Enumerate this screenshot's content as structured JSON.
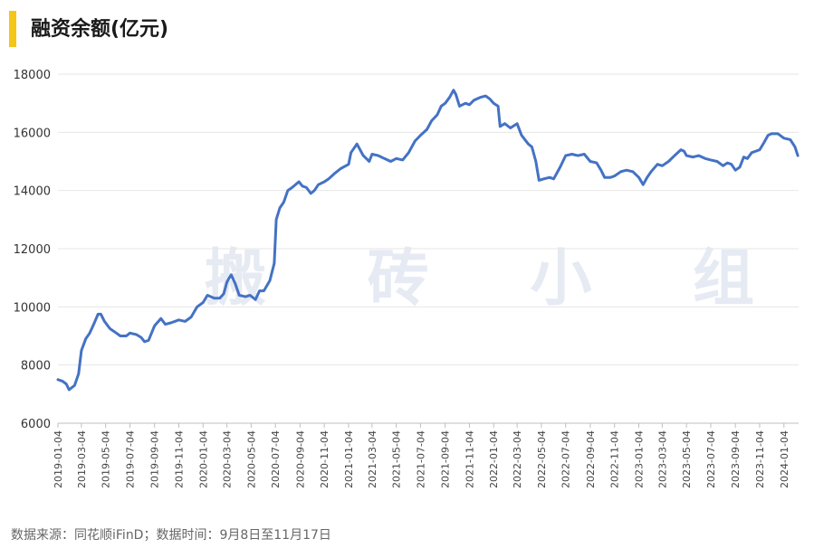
{
  "header": {
    "title": "融资余额(亿元)"
  },
  "watermark": "搬 砖 小 组",
  "footer": {
    "source": "数据来源：同花顺iFinD；数据时间：9月8日至11月17日"
  },
  "colors": {
    "line": "#4472c4",
    "accent": "#f5c518",
    "grid": "#e6e6e6"
  },
  "chart_data": {
    "type": "line",
    "title": "融资余额(亿元)",
    "xlabel": "",
    "ylabel": "",
    "ylim": [
      6000,
      18000
    ],
    "yticks": [
      6000,
      8000,
      10000,
      12000,
      14000,
      16000,
      18000
    ],
    "grid": true,
    "xticks": [
      "2019-01-04",
      "2019-03-04",
      "2019-05-04",
      "2019-07-04",
      "2019-09-04",
      "2019-11-04",
      "2020-01-04",
      "2020-03-04",
      "2020-05-04",
      "2020-07-04",
      "2020-09-04",
      "2020-11-04",
      "2021-01-04",
      "2021-03-04",
      "2021-05-04",
      "2021-07-04",
      "2021-09-04",
      "2021-11-04",
      "2022-01-04",
      "2022-03-04",
      "2022-05-04",
      "2022-07-04",
      "2022-09-04",
      "2022-11-04",
      "2023-01-04",
      "2023-03-04",
      "2023-05-04",
      "2023-07-04",
      "2023-09-04",
      "2023-11-04",
      "2024-01-04"
    ],
    "series": [
      {
        "values": [
          [
            "2019-01-04",
            7500
          ],
          [
            "2019-01-15",
            7450
          ],
          [
            "2019-01-25",
            7350
          ],
          [
            "2019-02-01",
            7150
          ],
          [
            "2019-02-15",
            7300
          ],
          [
            "2019-02-25",
            7700
          ],
          [
            "2019-03-04",
            8500
          ],
          [
            "2019-03-15",
            8900
          ],
          [
            "2019-03-25",
            9100
          ],
          [
            "2019-04-04",
            9400
          ],
          [
            "2019-04-15",
            9750
          ],
          [
            "2019-04-22",
            9750
          ],
          [
            "2019-05-01",
            9500
          ],
          [
            "2019-05-15",
            9250
          ],
          [
            "2019-05-31",
            9100
          ],
          [
            "2019-06-10",
            9000
          ],
          [
            "2019-06-25",
            9000
          ],
          [
            "2019-07-04",
            9100
          ],
          [
            "2019-07-20",
            9050
          ],
          [
            "2019-08-01",
            8950
          ],
          [
            "2019-08-10",
            8800
          ],
          [
            "2019-08-20",
            8850
          ],
          [
            "2019-09-04",
            9350
          ],
          [
            "2019-09-20",
            9600
          ],
          [
            "2019-10-01",
            9400
          ],
          [
            "2019-10-15",
            9450
          ],
          [
            "2019-11-04",
            9550
          ],
          [
            "2019-11-20",
            9500
          ],
          [
            "2019-12-05",
            9650
          ],
          [
            "2019-12-20",
            10000
          ],
          [
            "2020-01-04",
            10150
          ],
          [
            "2020-01-15",
            10400
          ],
          [
            "2020-02-01",
            10300
          ],
          [
            "2020-02-15",
            10300
          ],
          [
            "2020-02-25",
            10450
          ],
          [
            "2020-03-04",
            10850
          ],
          [
            "2020-03-10",
            11000
          ],
          [
            "2020-03-15",
            11100
          ],
          [
            "2020-03-25",
            10800
          ],
          [
            "2020-04-04",
            10400
          ],
          [
            "2020-04-20",
            10350
          ],
          [
            "2020-05-01",
            10400
          ],
          [
            "2020-05-15",
            10250
          ],
          [
            "2020-05-25",
            10550
          ],
          [
            "2020-06-05",
            10550
          ],
          [
            "2020-06-20",
            10900
          ],
          [
            "2020-07-01",
            11500
          ],
          [
            "2020-07-06",
            13000
          ],
          [
            "2020-07-15",
            13400
          ],
          [
            "2020-07-25",
            13600
          ],
          [
            "2020-08-04",
            14000
          ],
          [
            "2020-08-15",
            14100
          ],
          [
            "2020-09-01",
            14300
          ],
          [
            "2020-09-10",
            14150
          ],
          [
            "2020-09-20",
            14100
          ],
          [
            "2020-10-01",
            13900
          ],
          [
            "2020-10-10",
            14000
          ],
          [
            "2020-10-20",
            14200
          ],
          [
            "2020-11-04",
            14300
          ],
          [
            "2020-11-15",
            14400
          ],
          [
            "2020-12-01",
            14600
          ],
          [
            "2020-12-15",
            14750
          ],
          [
            "2021-01-04",
            14900
          ],
          [
            "2021-01-10",
            15300
          ],
          [
            "2021-01-25",
            15600
          ],
          [
            "2021-02-10",
            15200
          ],
          [
            "2021-02-25",
            15000
          ],
          [
            "2021-03-04",
            15250
          ],
          [
            "2021-03-20",
            15200
          ],
          [
            "2021-04-04",
            15100
          ],
          [
            "2021-04-20",
            15000
          ],
          [
            "2021-05-04",
            15100
          ],
          [
            "2021-05-20",
            15050
          ],
          [
            "2021-06-04",
            15300
          ],
          [
            "2021-06-20",
            15700
          ],
          [
            "2021-07-04",
            15900
          ],
          [
            "2021-07-20",
            16100
          ],
          [
            "2021-08-01",
            16400
          ],
          [
            "2021-08-15",
            16600
          ],
          [
            "2021-08-25",
            16900
          ],
          [
            "2021-09-04",
            17000
          ],
          [
            "2021-09-15",
            17200
          ],
          [
            "2021-09-25",
            17450
          ],
          [
            "2021-10-01",
            17300
          ],
          [
            "2021-10-10",
            16900
          ],
          [
            "2021-10-25",
            17000
          ],
          [
            "2021-11-04",
            16950
          ],
          [
            "2021-11-15",
            17100
          ],
          [
            "2021-12-01",
            17200
          ],
          [
            "2021-12-15",
            17250
          ],
          [
            "2021-12-25",
            17150
          ],
          [
            "2022-01-04",
            17000
          ],
          [
            "2022-01-15",
            16900
          ],
          [
            "2022-01-20",
            16200
          ],
          [
            "2022-02-01",
            16300
          ],
          [
            "2022-02-15",
            16150
          ],
          [
            "2022-03-04",
            16300
          ],
          [
            "2022-03-15",
            15900
          ],
          [
            "2022-04-01",
            15600
          ],
          [
            "2022-04-10",
            15500
          ],
          [
            "2022-04-20",
            15000
          ],
          [
            "2022-04-28",
            14350
          ],
          [
            "2022-05-10",
            14400
          ],
          [
            "2022-05-25",
            14450
          ],
          [
            "2022-06-04",
            14400
          ],
          [
            "2022-06-20",
            14800
          ],
          [
            "2022-07-04",
            15200
          ],
          [
            "2022-07-20",
            15250
          ],
          [
            "2022-08-04",
            15200
          ],
          [
            "2022-08-20",
            15250
          ],
          [
            "2022-09-04",
            15000
          ],
          [
            "2022-09-20",
            14950
          ],
          [
            "2022-10-01",
            14700
          ],
          [
            "2022-10-10",
            14450
          ],
          [
            "2022-10-25",
            14450
          ],
          [
            "2022-11-04",
            14500
          ],
          [
            "2022-11-20",
            14650
          ],
          [
            "2022-12-04",
            14700
          ],
          [
            "2022-12-20",
            14650
          ],
          [
            "2023-01-04",
            14450
          ],
          [
            "2023-01-15",
            14200
          ],
          [
            "2023-01-25",
            14450
          ],
          [
            "2023-02-04",
            14650
          ],
          [
            "2023-02-20",
            14900
          ],
          [
            "2023-03-04",
            14850
          ],
          [
            "2023-03-20",
            15000
          ],
          [
            "2023-04-04",
            15200
          ],
          [
            "2023-04-20",
            15400
          ],
          [
            "2023-04-28",
            15350
          ],
          [
            "2023-05-04",
            15200
          ],
          [
            "2023-05-20",
            15150
          ],
          [
            "2023-06-04",
            15200
          ],
          [
            "2023-06-20",
            15100
          ],
          [
            "2023-07-04",
            15050
          ],
          [
            "2023-07-20",
            15000
          ],
          [
            "2023-08-04",
            14850
          ],
          [
            "2023-08-15",
            14950
          ],
          [
            "2023-08-25",
            14900
          ],
          [
            "2023-09-04",
            14700
          ],
          [
            "2023-09-15",
            14800
          ],
          [
            "2023-09-25",
            15150
          ],
          [
            "2023-10-04",
            15100
          ],
          [
            "2023-10-15",
            15300
          ],
          [
            "2023-11-04",
            15400
          ],
          [
            "2023-11-15",
            15650
          ],
          [
            "2023-11-25",
            15900
          ],
          [
            "2023-12-04",
            15950
          ],
          [
            "2023-12-20",
            15950
          ],
          [
            "2024-01-04",
            15800
          ],
          [
            "2024-01-20",
            15750
          ],
          [
            "2024-02-01",
            15500
          ],
          [
            "2024-02-08",
            15200
          ]
        ]
      }
    ]
  }
}
